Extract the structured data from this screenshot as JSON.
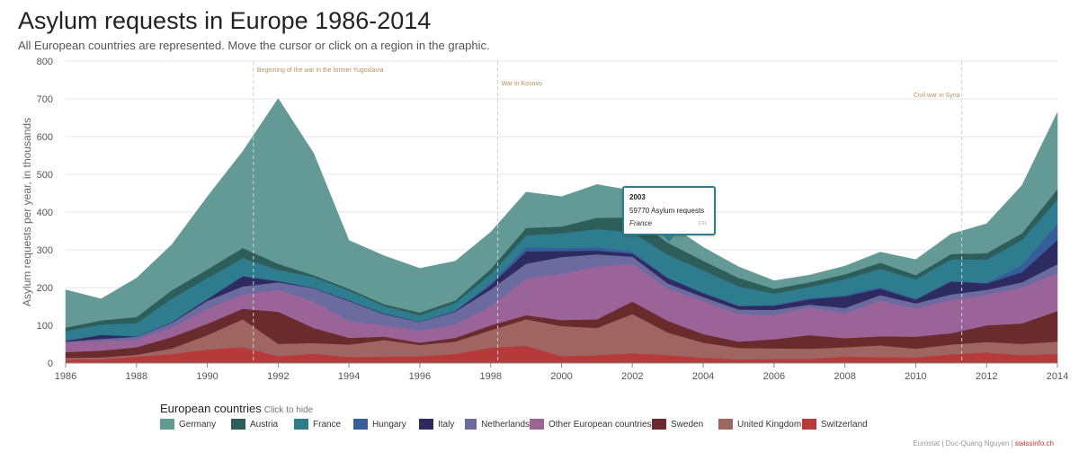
{
  "header": {
    "title": "Asylum requests in Europe 1986-2014",
    "subtitle": "All European countries are represented. Move the cursor or click on a region in the graphic."
  },
  "chart_data": {
    "type": "area",
    "stacked": true,
    "title": "Asylum requests in Europe 1986-2014",
    "ylabel": "Asylum requests per year, in thousands",
    "xlabel": "",
    "ylim": [
      0,
      800
    ],
    "yticks": [
      0,
      100,
      200,
      300,
      400,
      500,
      600,
      700,
      800
    ],
    "xticks": [
      1986,
      1988,
      1990,
      1992,
      1994,
      1996,
      1998,
      2000,
      2002,
      2004,
      2006,
      2008,
      2010,
      2012,
      2014
    ],
    "x": [
      1986,
      1987,
      1988,
      1989,
      1990,
      1991,
      1992,
      1993,
      1994,
      1995,
      1996,
      1997,
      1998,
      1999,
      2000,
      2001,
      2002,
      2003,
      2004,
      2005,
      2006,
      2007,
      2008,
      2009,
      2010,
      2011,
      2012,
      2013,
      2014
    ],
    "series": [
      {
        "name": "Switzerland",
        "color": "#b73a3a",
        "values": [
          9,
          10,
          17,
          24,
          36,
          42,
          18,
          25,
          16,
          17,
          18,
          24,
          41,
          46,
          18,
          21,
          26,
          21,
          14,
          10,
          11,
          11,
          17,
          16,
          15,
          23,
          28,
          21,
          24
        ]
      },
      {
        "name": "United Kingdom",
        "color": "#9e6562",
        "values": [
          5,
          5,
          5,
          15,
          38,
          74,
          33,
          28,
          33,
          44,
          30,
          33,
          46,
          70,
          80,
          72,
          104,
          60,
          40,
          30,
          28,
          27,
          25,
          31,
          23,
          26,
          28,
          30,
          33
        ]
      },
      {
        "name": "Sweden",
        "color": "#6a2b2c",
        "values": [
          15,
          18,
          20,
          30,
          30,
          28,
          85,
          40,
          18,
          9,
          6,
          10,
          13,
          11,
          16,
          23,
          33,
          31,
          23,
          17,
          24,
          36,
          24,
          24,
          32,
          30,
          44,
          54,
          81
        ]
      },
      {
        "name": "Other European countries",
        "color": "#9b6499",
        "values": [
          25,
          26,
          20,
          25,
          40,
          38,
          58,
          70,
          45,
          30,
          32,
          35,
          50,
          97,
          123,
          139,
          100,
          86,
          88,
          73,
          64,
          74,
          66,
          94,
          75,
          88,
          81,
          95,
          100
        ]
      },
      {
        "name": "Netherlands",
        "color": "#6c6ba0",
        "values": [
          3,
          5,
          8,
          13,
          21,
          21,
          20,
          35,
          52,
          29,
          23,
          34,
          45,
          39,
          44,
          33,
          19,
          13,
          10,
          12,
          14,
          7,
          14,
          15,
          13,
          15,
          13,
          14,
          24
        ]
      },
      {
        "name": "Italy",
        "color": "#2d2b60",
        "values": [
          2,
          11,
          1,
          2,
          5,
          27,
          3,
          1,
          2,
          2,
          1,
          2,
          11,
          33,
          16,
          10,
          8,
          14,
          10,
          9,
          11,
          14,
          31,
          17,
          10,
          34,
          17,
          27,
          64
        ]
      },
      {
        "name": "Hungary",
        "color": "#365e9a",
        "values": [
          0,
          0,
          0,
          0,
          0,
          1,
          1,
          1,
          0,
          0,
          0,
          0,
          7,
          11,
          8,
          9,
          6,
          2,
          2,
          2,
          2,
          3,
          3,
          5,
          2,
          2,
          2,
          19,
          43
        ]
      },
      {
        "name": "France",
        "color": "#2e7d8f",
        "values": [
          26,
          27,
          35,
          62,
          55,
          47,
          29,
          28,
          26,
          20,
          17,
          21,
          22,
          31,
          39,
          48,
          51,
          60,
          59,
          50,
          30,
          30,
          42,
          48,
          52,
          57,
          61,
          66,
          64
        ]
      },
      {
        "name": "Austria",
        "color": "#2e5e5a",
        "values": [
          9,
          11,
          16,
          22,
          23,
          27,
          16,
          5,
          5,
          5,
          7,
          7,
          14,
          20,
          18,
          30,
          39,
          32,
          25,
          23,
          13,
          12,
          13,
          16,
          11,
          14,
          17,
          18,
          28
        ]
      },
      {
        "name": "Germany",
        "color": "#649a96",
        "values": [
          100,
          57,
          103,
          121,
          193,
          256,
          438,
          323,
          128,
          128,
          117,
          104,
          98,
          95,
          79,
          88,
          71,
          51,
          36,
          29,
          21,
          19,
          22,
          28,
          41,
          53,
          78,
          127,
          203
        ]
      }
    ],
    "annotations": [
      {
        "year": 1991.3,
        "label": "Beginning of the war in the former Yugoslavia"
      },
      {
        "year": 1998.2,
        "label": "War in Kosovo"
      },
      {
        "year": 2011.3,
        "label": "Civil war in Syria"
      }
    ]
  },
  "legend": {
    "heading": "European countries",
    "hint": "Click to hide",
    "items": [
      {
        "label": "Germany",
        "color": "#649a96"
      },
      {
        "label": "Austria",
        "color": "#2e5e5a"
      },
      {
        "label": "France",
        "color": "#2e7d8f"
      },
      {
        "label": "Hungary",
        "color": "#365e9a"
      },
      {
        "label": "Italy",
        "color": "#2d2b60"
      },
      {
        "label": "Netherlands",
        "color": "#6c6ba0"
      },
      {
        "label": "Other European countries",
        "color": "#9b6499"
      },
      {
        "label": "Sweden",
        "color": "#6a2b2c"
      },
      {
        "label": "United Kingdom",
        "color": "#9e6562"
      },
      {
        "label": "Switzerland",
        "color": "#b73a3a"
      }
    ]
  },
  "tooltip": {
    "year": "2003",
    "value_text": "59770 Asylum requests",
    "country": "France",
    "code": "FR"
  },
  "credits": {
    "source": "Eurostat | Duc-Quang Nguyen | ",
    "brand": "swissinfo.ch"
  }
}
